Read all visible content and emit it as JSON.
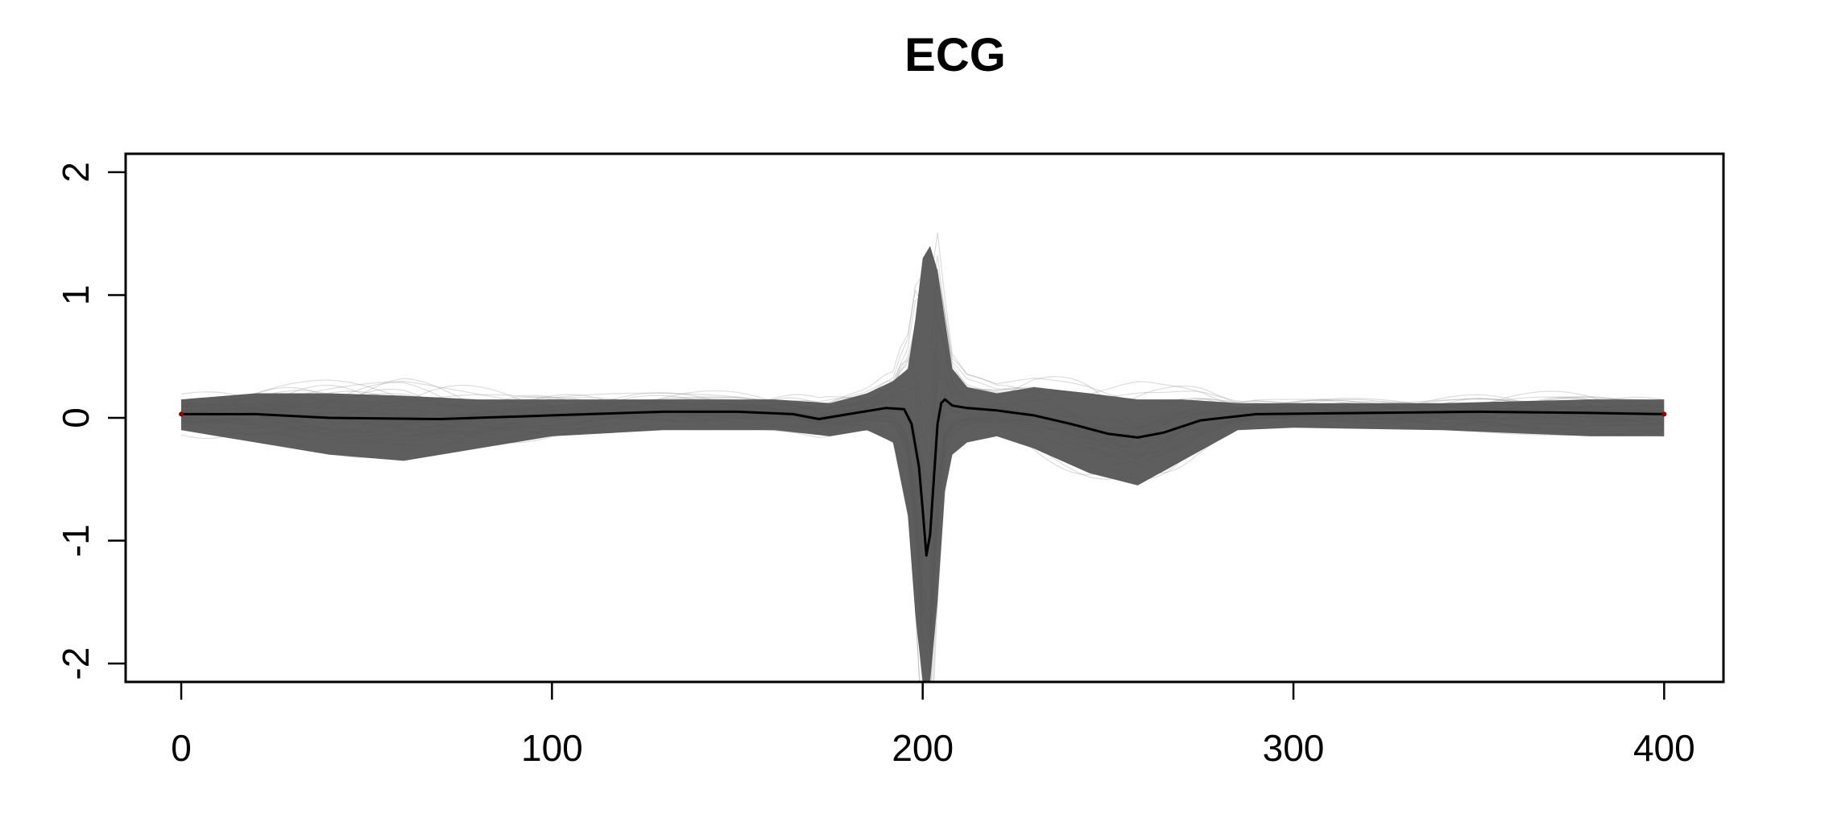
{
  "chart_data": {
    "type": "line",
    "title": "ECG",
    "xlabel": "",
    "ylabel": "",
    "xlim": [
      -15,
      416
    ],
    "ylim": [
      -2.15,
      2.15
    ],
    "xticks": [
      "0",
      "100",
      "200",
      "300",
      "400"
    ],
    "yticks": [
      "-2",
      "-1",
      "0",
      "1",
      "2"
    ],
    "grid": false,
    "colors": {
      "individual_curves": "#9a9a9a",
      "dense_band": "#555555",
      "mean_curve": "#000000",
      "endpoint_marker": "#8b0000"
    },
    "mean_curve": {
      "x": [
        0,
        20,
        40,
        70,
        100,
        130,
        150,
        165,
        172,
        180,
        190,
        195,
        197,
        199,
        200,
        201,
        202,
        203,
        204,
        205,
        206,
        208,
        212,
        220,
        230,
        240,
        250,
        258,
        265,
        275,
        290,
        320,
        350,
        380,
        400
      ],
      "y": [
        0.03,
        0.03,
        0.0,
        -0.01,
        0.02,
        0.05,
        0.05,
        0.03,
        -0.01,
        0.03,
        0.08,
        0.07,
        -0.05,
        -0.4,
        -0.75,
        -1.12,
        -0.95,
        -0.5,
        -0.05,
        0.12,
        0.15,
        0.1,
        0.08,
        0.06,
        0.02,
        -0.05,
        -0.13,
        -0.16,
        -0.12,
        -0.02,
        0.03,
        0.04,
        0.05,
        0.04,
        0.03
      ]
    },
    "spread_band": {
      "x": [
        0,
        20,
        40,
        60,
        80,
        100,
        130,
        160,
        175,
        185,
        192,
        196,
        198,
        200,
        202,
        204,
        206,
        208,
        212,
        220,
        230,
        245,
        258,
        270,
        285,
        300,
        340,
        380,
        400
      ],
      "upper": [
        0.15,
        0.2,
        0.2,
        0.18,
        0.15,
        0.15,
        0.15,
        0.15,
        0.12,
        0.2,
        0.3,
        0.4,
        0.8,
        1.3,
        1.4,
        1.2,
        0.8,
        0.4,
        0.25,
        0.2,
        0.25,
        0.2,
        0.15,
        0.15,
        0.12,
        0.12,
        0.12,
        0.15,
        0.15
      ],
      "lower": [
        -0.1,
        -0.2,
        -0.3,
        -0.35,
        -0.25,
        -0.15,
        -0.1,
        -0.1,
        -0.15,
        -0.1,
        -0.2,
        -0.8,
        -1.6,
        -2.15,
        -2.15,
        -1.5,
        -0.6,
        -0.3,
        -0.2,
        -0.15,
        -0.25,
        -0.45,
        -0.55,
        -0.35,
        -0.1,
        -0.08,
        -0.1,
        -0.15,
        -0.15
      ]
    }
  }
}
